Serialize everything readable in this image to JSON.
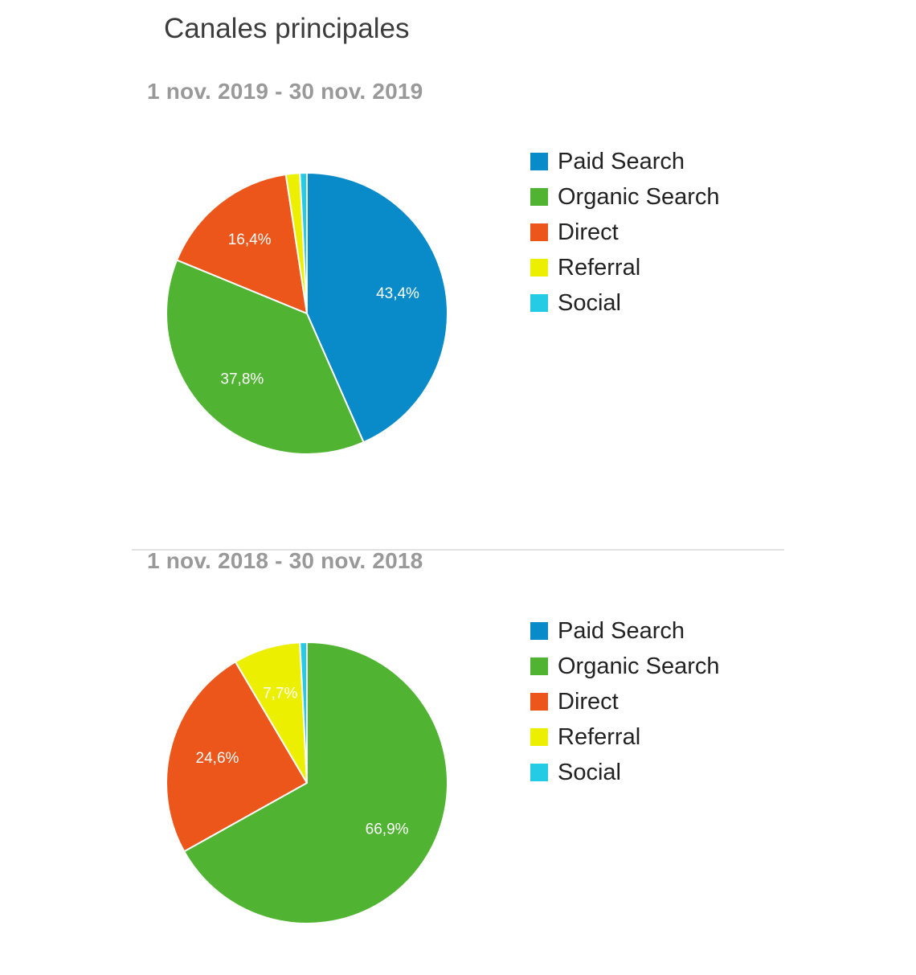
{
  "title": "Canales principales",
  "colors": {
    "Paid Search": "#0a8bc9",
    "Organic Search": "#50b432",
    "Direct": "#ed561b",
    "Referral": "#edef00",
    "Social": "#24cbe5"
  },
  "chart_data": [
    {
      "type": "pie",
      "subtitle": "1 nov. 2019 - 30 nov. 2019",
      "legend": "right",
      "slices": [
        {
          "name": "Paid Search",
          "value": 43.4,
          "label": "43,4%"
        },
        {
          "name": "Organic Search",
          "value": 37.8,
          "label": "37,8%"
        },
        {
          "name": "Direct",
          "value": 16.4,
          "label": "16,4%"
        },
        {
          "name": "Referral",
          "value": 1.6,
          "label": ""
        },
        {
          "name": "Social",
          "value": 0.8,
          "label": ""
        }
      ]
    },
    {
      "type": "pie",
      "subtitle": "1 nov. 2018 - 30 nov. 2018",
      "legend": "right",
      "slices": [
        {
          "name": "Paid Search",
          "value": 0.0,
          "label": ""
        },
        {
          "name": "Organic Search",
          "value": 66.9,
          "label": "66,9%"
        },
        {
          "name": "Direct",
          "value": 24.6,
          "label": "24,6%"
        },
        {
          "name": "Referral",
          "value": 7.7,
          "label": "7,7%"
        },
        {
          "name": "Social",
          "value": 0.8,
          "label": ""
        }
      ]
    }
  ]
}
